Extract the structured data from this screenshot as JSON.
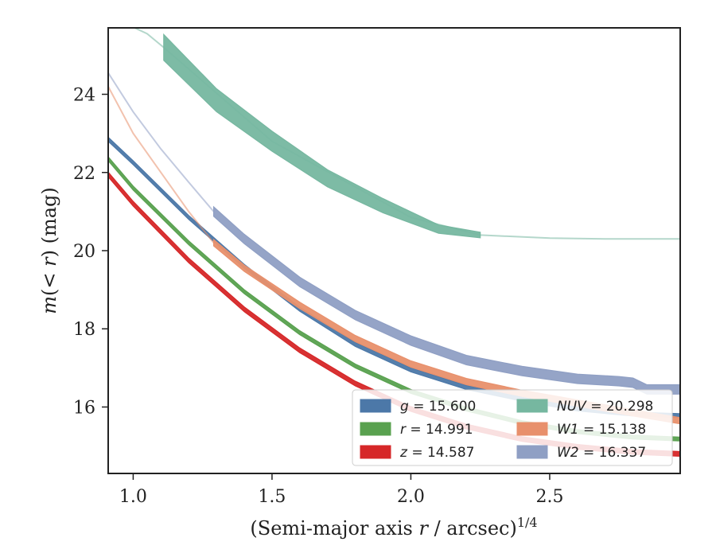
{
  "chart_data": {
    "type": "line",
    "xlabel": "(Semi-major axis r / arcsec)^{1/4}",
    "ylabel": "m(<r) (mag)",
    "xlim": [
      0.91,
      2.97
    ],
    "ylim": [
      25.7,
      14.3
    ],
    "y_inverted": true,
    "xticks": [
      1.0,
      1.5,
      2.0,
      2.5
    ],
    "xtick_labels": [
      "1.0",
      "1.5",
      "2.0",
      "2.5"
    ],
    "yticks": [
      16,
      18,
      20,
      22,
      24
    ],
    "ytick_labels": [
      "16",
      "18",
      "20",
      "22",
      "24"
    ],
    "legend_position": "lower-right",
    "legend_columns": 2,
    "series": [
      {
        "name": "g = 15.600",
        "band": "g",
        "total_mag": "15.600",
        "color": "#4c78a8",
        "x": [
          0.91,
          1.0,
          1.2,
          1.4,
          1.6,
          1.8,
          2.0,
          2.2,
          2.4,
          2.6,
          2.8,
          2.97
        ],
        "y": [
          22.85,
          22.25,
          20.85,
          19.6,
          18.5,
          17.6,
          16.95,
          16.5,
          16.2,
          15.95,
          15.82,
          15.78
        ],
        "halfwidth": 0.05
      },
      {
        "name": "r = 14.991",
        "band": "r",
        "total_mag": "14.991",
        "color": "#59a14f",
        "x": [
          0.91,
          1.0,
          1.2,
          1.4,
          1.6,
          1.8,
          2.0,
          2.2,
          2.4,
          2.6,
          2.8,
          2.97
        ],
        "y": [
          22.35,
          21.6,
          20.2,
          18.95,
          17.9,
          17.05,
          16.4,
          15.95,
          15.6,
          15.37,
          15.23,
          15.18
        ],
        "halfwidth": 0.05
      },
      {
        "name": "z = 14.587",
        "band": "z",
        "total_mag": "14.587",
        "color": "#d62728",
        "x": [
          0.91,
          1.0,
          1.2,
          1.4,
          1.6,
          1.8,
          2.0,
          2.2,
          2.4,
          2.6,
          2.8,
          2.97
        ],
        "y": [
          21.95,
          21.2,
          19.75,
          18.5,
          17.45,
          16.6,
          15.95,
          15.5,
          15.18,
          14.98,
          14.85,
          14.8
        ],
        "halfwidth": 0.06
      },
      {
        "name": "NUV = 20.298",
        "band": "NUV",
        "total_mag": "20.298",
        "color": "#76b7a0",
        "x": [
          1.11,
          1.3,
          1.5,
          1.7,
          1.9,
          2.0,
          2.1,
          2.25
        ],
        "y": [
          25.2,
          23.85,
          22.8,
          21.85,
          21.15,
          20.85,
          20.55,
          20.4
        ],
        "halfwidth_start": 0.33,
        "halfwidth_end": 0.07,
        "extrapolated": {
          "x": [
            0.99,
            1.05,
            1.11,
            1.5,
            2.0,
            2.25,
            2.5,
            2.7,
            2.97
          ],
          "y": [
            25.75,
            25.55,
            25.2,
            22.8,
            20.85,
            20.4,
            20.32,
            20.3,
            20.3
          ]
        }
      },
      {
        "name": "W1 = 15.138",
        "band": "W1",
        "total_mag": "15.138",
        "color": "#e8906c",
        "x": [
          1.29,
          1.4,
          1.6,
          1.8,
          2.0,
          2.2,
          2.4,
          2.6,
          2.8,
          2.97
        ],
        "y": [
          20.2,
          19.55,
          18.6,
          17.75,
          17.1,
          16.65,
          16.35,
          16.1,
          15.85,
          15.65
        ],
        "halfwidth": 0.08,
        "extrapolated": {
          "x": [
            0.91,
            1.0,
            1.1,
            1.2,
            1.29
          ],
          "y": [
            24.2,
            23.0,
            22.0,
            21.0,
            20.2
          ]
        }
      },
      {
        "name": "W2 = 16.337",
        "band": "W2",
        "total_mag": "16.337",
        "color": "#8f9fc4",
        "x": [
          1.29,
          1.4,
          1.5,
          1.6,
          1.8,
          2.0,
          2.2,
          2.4,
          2.6,
          2.75,
          2.8,
          2.85,
          2.97
        ],
        "y": [
          21.0,
          20.3,
          19.75,
          19.2,
          18.35,
          17.7,
          17.2,
          16.92,
          16.72,
          16.66,
          16.62,
          16.45,
          16.45
        ],
        "halfwidth": 0.12,
        "extrapolated": {
          "x": [
            0.91,
            1.0,
            1.1,
            1.2,
            1.29
          ],
          "y": [
            24.55,
            23.55,
            22.6,
            21.75,
            21.0
          ]
        }
      }
    ],
    "legend": [
      {
        "band": "g",
        "value": "15.600"
      },
      {
        "band": "r",
        "value": "14.991"
      },
      {
        "band": "z",
        "value": "14.587"
      },
      {
        "band": "NUV",
        "value": "20.298"
      },
      {
        "band": "W1",
        "value": "15.138"
      },
      {
        "band": "W2",
        "value": "16.337"
      }
    ]
  }
}
